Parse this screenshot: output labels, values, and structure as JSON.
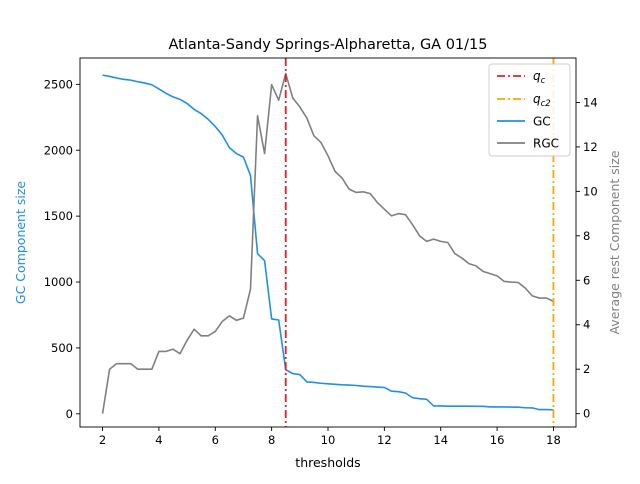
{
  "chart_data": {
    "type": "line",
    "title": "Atlanta-Sandy Springs-Alpharetta, GA 01/15",
    "xlabel": "thresholds",
    "ylabel_left": "GC Component size",
    "ylabel_right": "Average rest Component size",
    "xlim": [
      1.2,
      18.8
    ],
    "ylim_left": [
      -100,
      2700
    ],
    "ylim_right": [
      -0.6,
      16
    ],
    "xticks": [
      "2",
      "4",
      "6",
      "8",
      "10",
      "12",
      "14",
      "16",
      "18"
    ],
    "yticks_left": [
      "0",
      "500",
      "1000",
      "1500",
      "2000",
      "2500"
    ],
    "yticks_right": [
      "0",
      "2",
      "4",
      "6",
      "8",
      "10",
      "12",
      "14"
    ],
    "legend_position": "top-right",
    "legend": [
      "q_c",
      "q_c2",
      "GC",
      "RGC"
    ],
    "q_c": 8.5,
    "q_c2": 18.0,
    "colors": {
      "gc": "#1f8fe8",
      "rgc": "#808080",
      "q_c": "#d62728",
      "q_c2": "#ffa500"
    },
    "x": [
      2.0,
      2.25,
      2.5,
      2.75,
      3.0,
      3.25,
      3.5,
      3.75,
      4.0,
      4.25,
      4.5,
      4.75,
      5.0,
      5.25,
      5.5,
      5.75,
      6.0,
      6.25,
      6.5,
      6.75,
      7.0,
      7.25,
      7.5,
      7.75,
      8.0,
      8.25,
      8.5,
      8.75,
      9.0,
      9.25,
      9.5,
      9.75,
      10.0,
      10.25,
      10.5,
      10.75,
      11.0,
      11.25,
      11.5,
      11.75,
      12.0,
      12.25,
      12.5,
      12.75,
      13.0,
      13.25,
      13.5,
      13.75,
      14.0,
      14.25,
      14.5,
      14.75,
      15.0,
      15.25,
      15.5,
      15.75,
      16.0,
      16.25,
      16.5,
      16.75,
      17.0,
      17.25,
      17.5,
      17.75,
      18.0
    ],
    "series": [
      {
        "name": "GC",
        "axis": "left",
        "values": [
          2570,
          2560,
          2548,
          2538,
          2532,
          2520,
          2510,
          2497,
          2465,
          2432,
          2405,
          2386,
          2355,
          2310,
          2278,
          2234,
          2180,
          2115,
          2020,
          1975,
          1948,
          1808,
          1215,
          1162,
          720,
          712,
          335,
          305,
          298,
          242,
          238,
          232,
          228,
          224,
          220,
          218,
          215,
          210,
          207,
          203,
          200,
          172,
          168,
          158,
          122,
          115,
          110,
          60,
          60,
          58,
          58,
          58,
          58,
          57,
          57,
          52,
          52,
          52,
          51,
          50,
          46,
          45,
          32,
          32,
          30
        ]
      },
      {
        "name": "RGC",
        "axis": "right",
        "values": [
          0.0,
          2.0,
          2.25,
          2.25,
          2.25,
          2.0,
          2.0,
          2.0,
          2.8,
          2.8,
          2.9,
          2.7,
          3.3,
          3.8,
          3.5,
          3.5,
          3.7,
          4.15,
          4.4,
          4.2,
          4.3,
          5.6,
          13.4,
          11.7,
          14.8,
          14.1,
          15.3,
          14.2,
          13.8,
          13.3,
          12.5,
          12.2,
          11.6,
          10.9,
          10.6,
          10.1,
          9.95,
          9.98,
          9.9,
          9.5,
          9.2,
          8.9,
          9.0,
          8.95,
          8.5,
          8.0,
          7.75,
          7.85,
          7.75,
          7.7,
          7.2,
          7.0,
          6.75,
          6.65,
          6.4,
          6.3,
          6.2,
          5.95,
          5.92,
          5.9,
          5.65,
          5.3,
          5.2,
          5.2,
          5.05
        ]
      }
    ]
  }
}
